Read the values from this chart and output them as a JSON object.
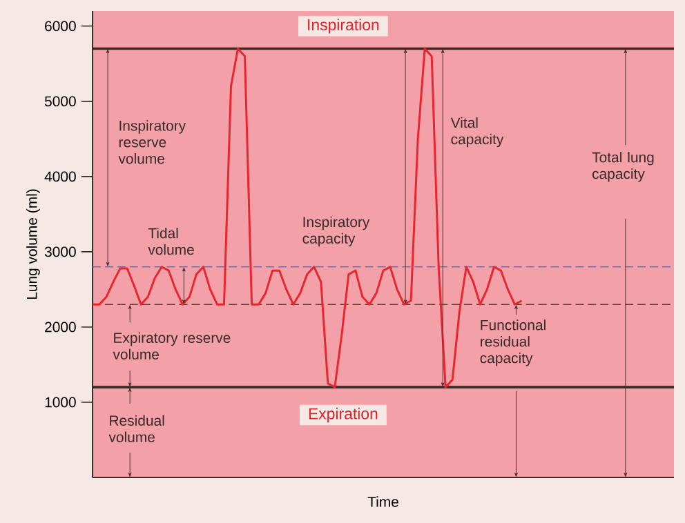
{
  "chart_data": {
    "type": "line",
    "xlabel": "Time",
    "ylabel": "Lung volume (ml)",
    "categories": [
      null,
      null,
      null,
      null,
      null,
      null,
      null,
      null,
      null,
      null,
      null,
      null,
      null,
      null,
      null,
      null,
      null,
      null,
      null,
      null,
      null,
      null,
      null,
      null,
      null,
      null,
      null,
      null,
      null,
      null,
      null,
      null,
      null,
      null,
      null,
      null,
      null,
      null,
      null,
      null,
      null,
      null,
      null,
      null,
      null,
      null,
      null,
      null,
      null,
      null,
      null,
      null,
      null,
      null,
      null,
      null,
      null,
      null,
      null,
      null,
      null,
      null,
      null,
      null,
      null,
      null,
      null,
      null,
      null,
      null,
      null,
      null,
      null,
      null,
      null,
      null,
      null,
      null,
      null,
      null,
      null,
      null,
      null,
      null,
      null
    ],
    "series": [
      {
        "color": "#e8262e",
        "values": [
          2300,
          2300,
          2400,
          2600,
          2780,
          2780,
          2550,
          2300,
          2400,
          2650,
          2800,
          2750,
          2500,
          2300,
          2400,
          2700,
          2800,
          2500,
          2300,
          2300,
          5200,
          5700,
          5600,
          2300,
          2300,
          2450,
          2750,
          2750,
          2500,
          2300,
          2450,
          2700,
          2800,
          2600,
          1250,
          1200,
          1900,
          2700,
          2750,
          2400,
          2300,
          2450,
          2750,
          2800,
          2500,
          2300,
          2350,
          4500,
          5700,
          5600,
          2800,
          1200,
          1300,
          2200,
          2800,
          2600,
          2300,
          2500,
          2800,
          2750,
          2500,
          2300,
          2350,
          null,
          null,
          null,
          null,
          null,
          null,
          null,
          null,
          null,
          null,
          null,
          null,
          null,
          null,
          null,
          null,
          null,
          null,
          null,
          null,
          null,
          null
        ]
      }
    ],
    "ylim": [
      0,
      6200
    ],
    "yticks": [
      1000,
      2000,
      3000,
      4000,
      5000,
      6000
    ],
    "tick_labels": "y",
    "marker": "none",
    "line_style": "solid",
    "ref_lines": [
      {
        "axis": "y",
        "value": 5700,
        "color": "#3a2a22",
        "line_style": "solid"
      },
      {
        "axis": "y",
        "value": 2800,
        "color": "#7a6a9a",
        "line_style": "dashed"
      },
      {
        "axis": "y",
        "value": 2300,
        "color": "#5a4a2a",
        "line_style": "dashed"
      },
      {
        "axis": "y",
        "value": 1200,
        "color": "#3a2a22",
        "line_style": "solid"
      }
    ],
    "annotations": [
      "Inspiration",
      "Expiration",
      "Inspiratory reserve volume",
      "Tidal volume",
      "Expiratory reserve volume",
      "Residual volume",
      "Inspiratory capacity",
      "Vital capacity",
      "Functional residual capacity",
      "Total lung capacity"
    ]
  }
}
